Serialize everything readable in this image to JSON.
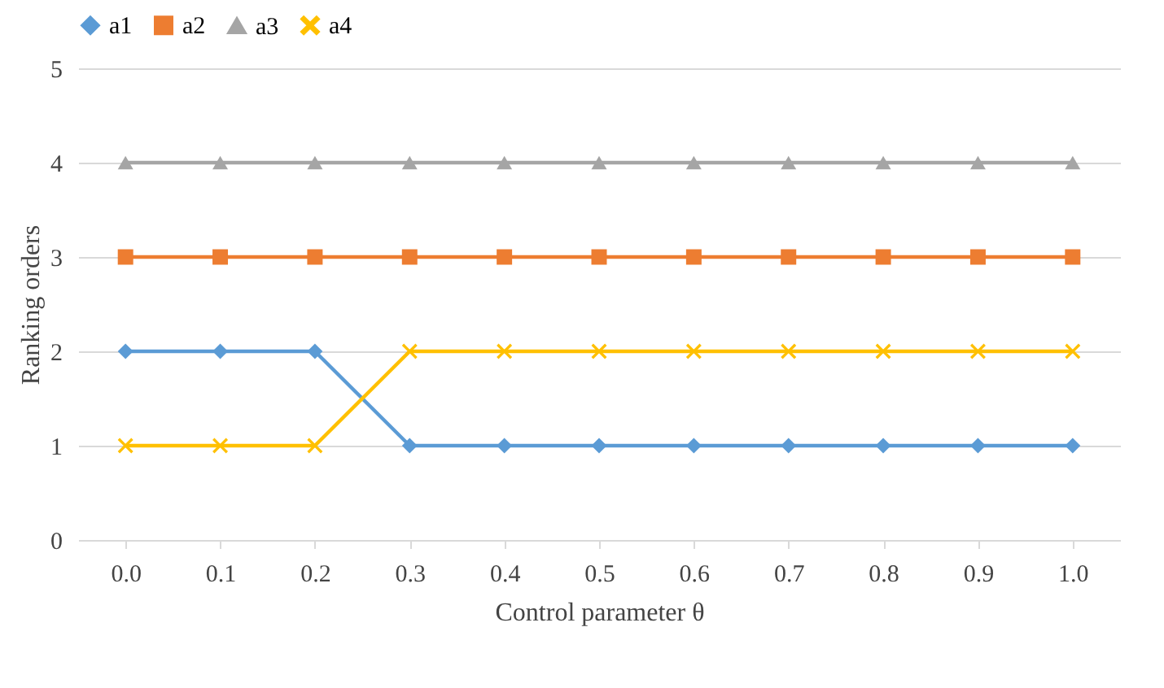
{
  "chart_data": {
    "type": "line",
    "xlabel": "Control parameter θ",
    "ylabel": "Ranking orders",
    "categories": [
      "0.0",
      "0.1",
      "0.2",
      "0.3",
      "0.4",
      "0.5",
      "0.6",
      "0.7",
      "0.8",
      "0.9",
      "1.0"
    ],
    "series": [
      {
        "name": "a1",
        "color": "#5b9bd5",
        "marker": "diamond",
        "values": [
          2,
          2,
          2,
          1,
          1,
          1,
          1,
          1,
          1,
          1,
          1
        ]
      },
      {
        "name": "a2",
        "color": "#ed7d31",
        "marker": "square",
        "values": [
          3,
          3,
          3,
          3,
          3,
          3,
          3,
          3,
          3,
          3,
          3
        ]
      },
      {
        "name": "a3",
        "color": "#a5a5a5",
        "marker": "triangle",
        "values": [
          4,
          4,
          4,
          4,
          4,
          4,
          4,
          4,
          4,
          4,
          4
        ]
      },
      {
        "name": "a4",
        "color": "#ffc000",
        "marker": "cross",
        "values": [
          1,
          1,
          1,
          2,
          2,
          2,
          2,
          2,
          2,
          2,
          2
        ]
      }
    ],
    "ylim": [
      0,
      5
    ],
    "yticks": [
      0,
      1,
      2,
      3,
      4,
      5
    ],
    "grid": "y",
    "legend": "top"
  }
}
